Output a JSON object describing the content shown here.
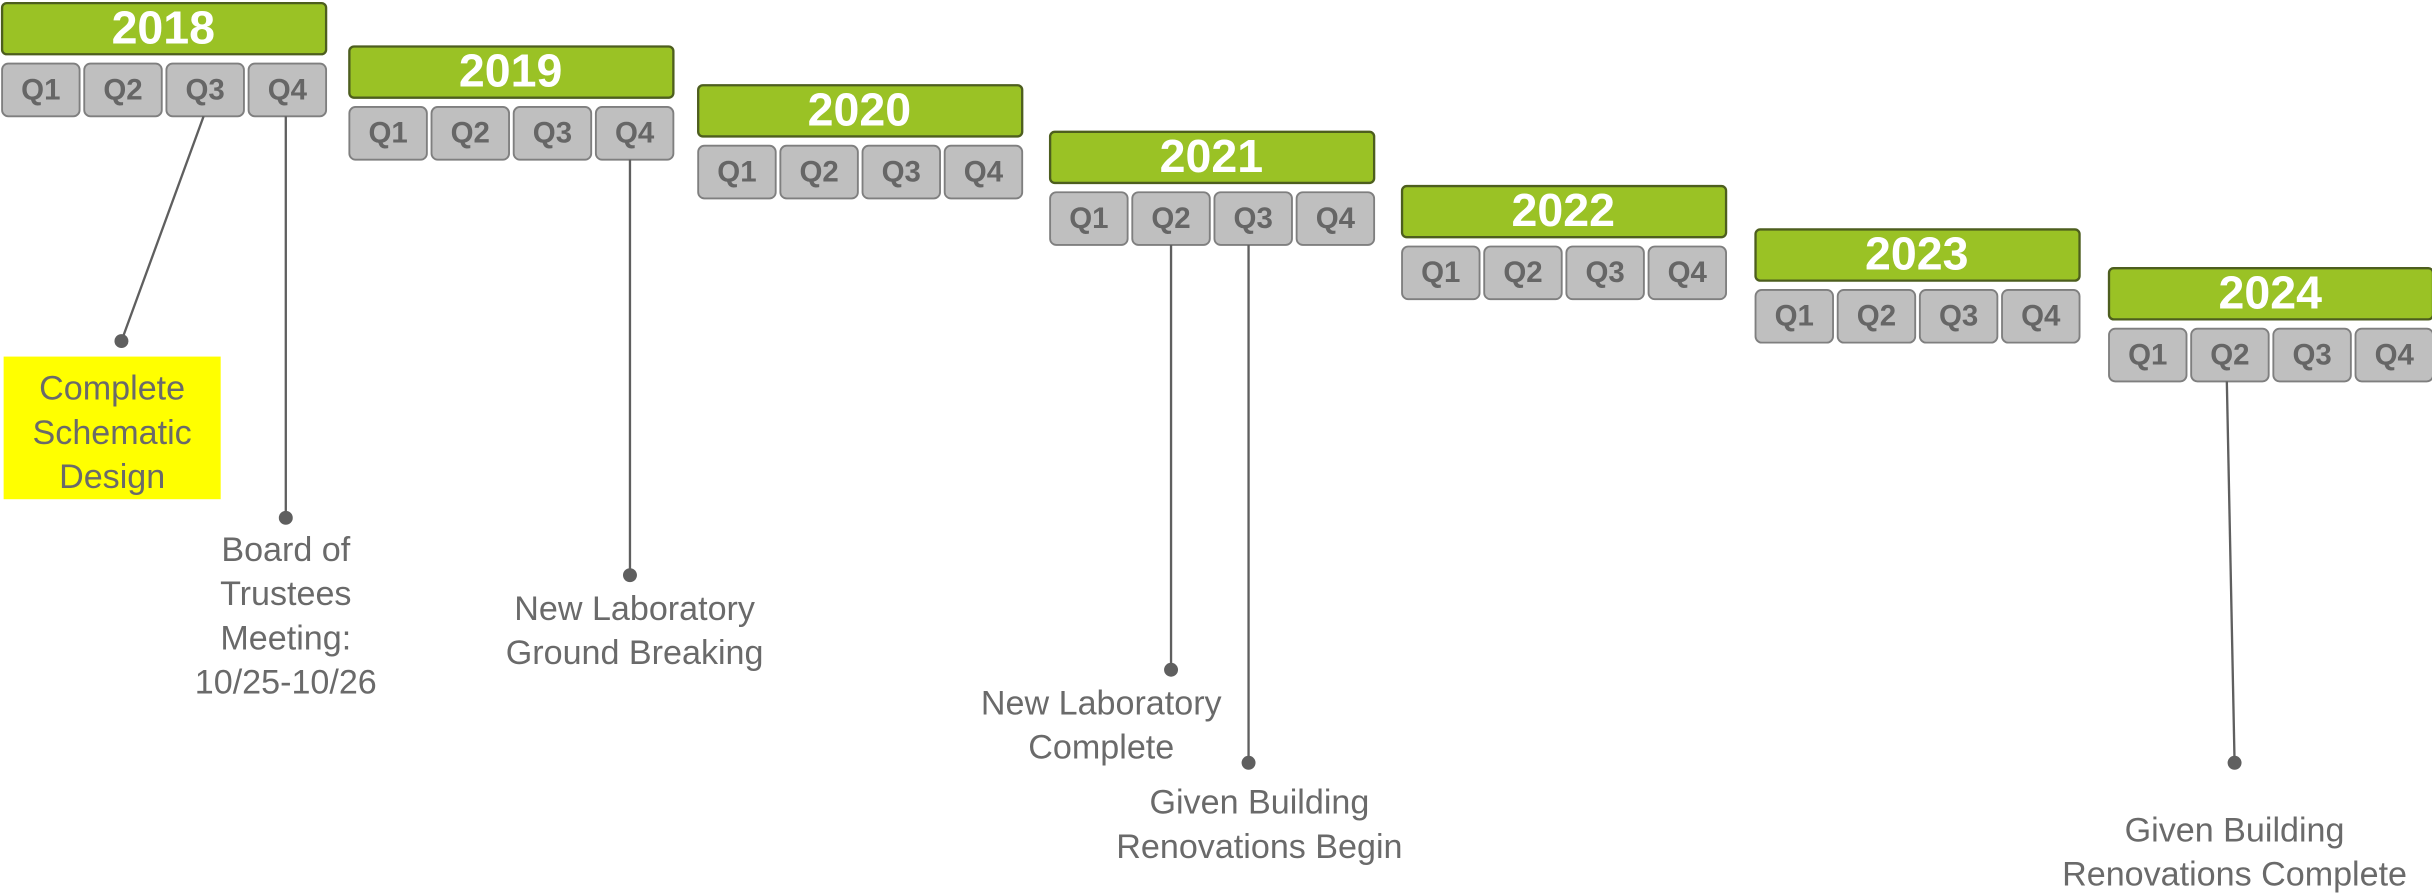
{
  "years": [
    {
      "year": "2018",
      "quarters": [
        "Q1",
        "Q2",
        "Q3",
        "Q4"
      ]
    },
    {
      "year": "2019",
      "quarters": [
        "Q1",
        "Q2",
        "Q3",
        "Q4"
      ]
    },
    {
      "year": "2020",
      "quarters": [
        "Q1",
        "Q2",
        "Q3",
        "Q4"
      ]
    },
    {
      "year": "2021",
      "quarters": [
        "Q1",
        "Q2",
        "Q3",
        "Q4"
      ]
    },
    {
      "year": "2022",
      "quarters": [
        "Q1",
        "Q2",
        "Q3",
        "Q4"
      ]
    },
    {
      "year": "2023",
      "quarters": [
        "Q1",
        "Q2",
        "Q3",
        "Q4"
      ]
    },
    {
      "year": "2024",
      "quarters": [
        "Q1",
        "Q2",
        "Q3",
        "Q4"
      ]
    }
  ],
  "milestones": [
    {
      "label_lines": [
        "Complete",
        "Schematic",
        "Design"
      ]
    },
    {
      "label_lines": [
        "Board of",
        "Trustees",
        "Meeting:",
        "10/25-10/26"
      ]
    },
    {
      "label_lines": [
        "New Laboratory",
        "Ground Breaking"
      ]
    },
    {
      "label_lines": [
        "New Laboratory",
        "Complete"
      ]
    },
    {
      "label_lines": [
        "Given Building",
        "Renovations Begin"
      ]
    },
    {
      "label_lines": [
        "Given Building",
        "Renovations Complete"
      ]
    }
  ]
}
